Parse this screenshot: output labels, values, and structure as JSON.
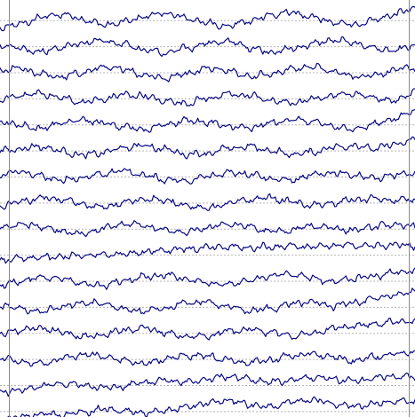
{
  "chart_data": {
    "type": "line",
    "title": "",
    "xlabel": "",
    "ylabel": "",
    "grid": true,
    "legend": "none",
    "x": [
      0,
      0.05,
      0.1,
      0.15,
      0.2,
      0.25,
      0.3,
      0.35,
      0.4,
      0.45,
      0.5,
      0.55,
      0.6,
      0.65,
      0.7,
      0.75,
      0.8,
      0.85,
      0.9,
      0.95,
      1.0
    ],
    "trace_color": "#000080",
    "baseline_color": "#b4b4b4",
    "series": [
      {
        "values": [
          -0.8,
          -0.4,
          0.3,
          0.6,
          0.1,
          -0.5,
          -0.2,
          0.4,
          0.7,
          0.2,
          -0.3,
          -0.6,
          -0.1,
          0.5,
          0.8,
          0.3,
          -0.2,
          -0.5,
          0.0,
          0.6,
          1.2
        ]
      },
      {
        "values": [
          0.2,
          -0.3,
          -0.6,
          -0.1,
          0.4,
          0.6,
          0.2,
          -0.4,
          -0.7,
          -0.2,
          0.3,
          0.5,
          -0.1,
          -0.6,
          -0.3,
          0.2,
          0.6,
          0.4,
          -0.2,
          -0.5,
          0.1
        ]
      },
      {
        "values": [
          0.1,
          0.4,
          -0.2,
          -0.5,
          0.0,
          0.5,
          0.3,
          -0.3,
          -0.6,
          -0.1,
          0.4,
          0.2,
          -0.4,
          -0.2,
          0.3,
          0.6,
          0.1,
          -0.4,
          -0.3,
          0.2,
          0.5
        ]
      },
      {
        "values": [
          -0.2,
          0.3,
          0.5,
          0.0,
          -0.4,
          -0.1,
          0.4,
          0.2,
          -0.3,
          -0.5,
          0.0,
          0.4,
          0.3,
          -0.2,
          -0.5,
          -0.1,
          0.3,
          0.5,
          0.1,
          -0.3,
          0.7
        ]
      },
      {
        "values": [
          0.3,
          -0.1,
          -0.4,
          0.2,
          0.5,
          0.1,
          -0.3,
          -0.5,
          0.0,
          0.4,
          0.2,
          -0.2,
          -0.4,
          0.1,
          0.5,
          0.3,
          -0.2,
          -0.5,
          0.0,
          0.6,
          1.4
        ]
      },
      {
        "values": [
          -0.1,
          0.2,
          0.4,
          -0.1,
          -0.5,
          -0.2,
          0.3,
          0.5,
          0.1,
          -0.4,
          -0.3,
          0.2,
          0.4,
          0.0,
          -0.4,
          -0.2,
          0.3,
          0.5,
          0.2,
          0.6,
          1.1
        ]
      },
      {
        "values": [
          0.2,
          0.5,
          0.0,
          -0.4,
          -0.1,
          0.3,
          0.6,
          0.1,
          -0.3,
          -0.5,
          0.0,
          0.4,
          0.3,
          -0.2,
          -0.4,
          0.1,
          0.4,
          0.2,
          -0.2,
          0.1,
          0.4
        ]
      },
      {
        "values": [
          -0.3,
          0.1,
          0.5,
          0.3,
          -0.2,
          -0.5,
          0.0,
          0.4,
          0.2,
          -0.3,
          -0.6,
          -0.1,
          0.3,
          0.5,
          0.1,
          -0.3,
          -0.1,
          0.3,
          0.4,
          0.2,
          0.3
        ]
      },
      {
        "values": [
          0.0,
          0.4,
          0.2,
          -0.3,
          -0.5,
          0.0,
          0.5,
          0.3,
          -0.2,
          -0.4,
          0.1,
          0.5,
          0.2,
          -0.3,
          -0.2,
          0.3,
          0.1,
          -0.2,
          0.2,
          0.4,
          0.2
        ]
      },
      {
        "values": [
          -0.6,
          -0.4,
          -0.3,
          -0.2,
          -0.1,
          0.0,
          0.1,
          0.3,
          0.5,
          0.6,
          0.7,
          0.8,
          0.7,
          0.8,
          0.9,
          0.8,
          0.9,
          1.0,
          0.9,
          1.0,
          0.9
        ]
      },
      {
        "values": [
          -0.5,
          0.0,
          0.4,
          0.2,
          -0.3,
          -0.5,
          0.0,
          0.4,
          0.6,
          0.2,
          -0.2,
          -0.4,
          0.0,
          0.5,
          0.7,
          0.3,
          -0.1,
          0.2,
          0.5,
          0.8,
          1.1
        ]
      },
      {
        "values": [
          0.2,
          -0.2,
          -0.5,
          0.0,
          0.4,
          0.3,
          -0.2,
          -0.5,
          -0.1,
          0.4,
          0.5,
          0.0,
          -0.4,
          -0.2,
          0.3,
          0.5,
          0.1,
          0.4,
          0.8,
          1.2,
          1.6
        ]
      },
      {
        "values": [
          -0.2,
          0.3,
          0.5,
          0.1,
          -0.4,
          -0.2,
          0.3,
          0.5,
          0.0,
          -0.4,
          -0.3,
          0.2,
          0.4,
          0.1,
          -0.3,
          0.0,
          0.4,
          0.7,
          0.9,
          1.1,
          1.3
        ]
      },
      {
        "values": [
          0.1,
          -0.3,
          -0.5,
          0.0,
          0.5,
          0.3,
          -0.2,
          -0.5,
          0.0,
          0.4,
          0.3,
          -0.1,
          -0.4,
          -0.1,
          0.3,
          0.5,
          0.2,
          -0.2,
          0.2,
          0.5,
          0.7
        ]
      },
      {
        "values": [
          -0.7,
          -0.5,
          -0.1,
          0.2,
          0.0,
          -0.3,
          -0.1,
          0.3,
          0.5,
          0.3,
          0.6,
          0.9,
          0.6,
          0.3,
          0.5,
          0.8,
          0.6,
          0.4,
          0.7,
          0.9,
          0.8
        ]
      },
      {
        "values": [
          -0.9,
          -0.6,
          -0.3,
          -0.4,
          -0.1,
          0.2,
          0.0,
          -0.2,
          0.1,
          0.4,
          0.8,
          1.1,
          0.7,
          0.4,
          0.9,
          1.2,
          0.8,
          0.5,
          0.7,
          1.0,
          0.9
        ]
      }
    ]
  }
}
